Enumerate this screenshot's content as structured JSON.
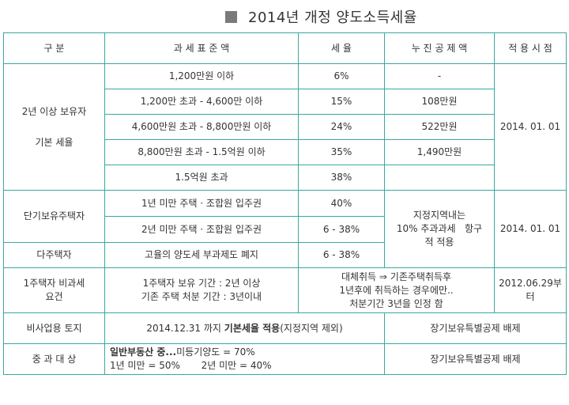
{
  "title": "2014년 개정 양도소득세율",
  "headers": [
    "구 분",
    "과 세 표 준 액",
    "세 율",
    "누 진 공 제 액",
    "적 용 시 점"
  ],
  "basic": {
    "category_line1": "2년 이상 보유자",
    "category_line2": "기본 세율",
    "rows": [
      {
        "bracket": "1,200만원 이하",
        "rate": "6%",
        "deduction": "-"
      },
      {
        "bracket": "1,200만 초과 - 4,600만 이하",
        "rate": "15%",
        "deduction": "108만원"
      },
      {
        "bracket": "4,600만원 초과 - 8,800만원 이하",
        "rate": "24%",
        "deduction": "522만원"
      },
      {
        "bracket": "8,800만원 초과 - 1.5억원 이하",
        "rate": "35%",
        "deduction": "1,490만원"
      },
      {
        "bracket": "1.5억원 초과",
        "rate": "38%",
        "deduction": ""
      }
    ],
    "date": "2014. 01. 01"
  },
  "short_term": {
    "category": "단기보유주택자",
    "rows": [
      {
        "bracket": "1년 미만 주택 · 조합원 입주권",
        "rate": "40%"
      },
      {
        "bracket": "2년 미만 주택 · 조합원 입주권",
        "rate": "6 - 38%"
      }
    ],
    "deduction_line1": "지정지역내는",
    "deduction_line2": "10% 추과과세   항구",
    "deduction_line3": "적 적용",
    "date": "2014. 01. 01"
  },
  "multi_home": {
    "category": "다주택자",
    "bracket": "고율의 양도세 부과제도 폐지",
    "rate": "6 - 38%"
  },
  "single_home": {
    "category_line1": "1주택자 비과세",
    "category_line2": "요건",
    "bracket_line1": "1주택자 보유 기간 : 2년 이상",
    "bracket_line2": "기존 주택 처분 기간 : 3년이내",
    "note_line1": "대체취득 ⇒ 기존주택취득후",
    "note_line2": "1년후에 취득하는 경우에만..",
    "note_line3": "처분기간 3년을 인정 함",
    "date_line1": "2012.06.29부",
    "date_line2": "터"
  },
  "non_business_land": {
    "category": "비사업용 토지",
    "text_pre": "2014.12.31 까지 ",
    "text_bold": "기본세율 적용",
    "text_post": "(지정지역 제외)",
    "deduction": "장기보유특별공제 배제"
  },
  "heavy_tax": {
    "category": "중 과 대 상",
    "line1_bold": "일반부동산 중...",
    "line1_rest": "미등기양도 = 70%",
    "line2": "1년 미만 = 50%       2년 미만 = 40%",
    "deduction": "장기보유특별공제 배제"
  }
}
